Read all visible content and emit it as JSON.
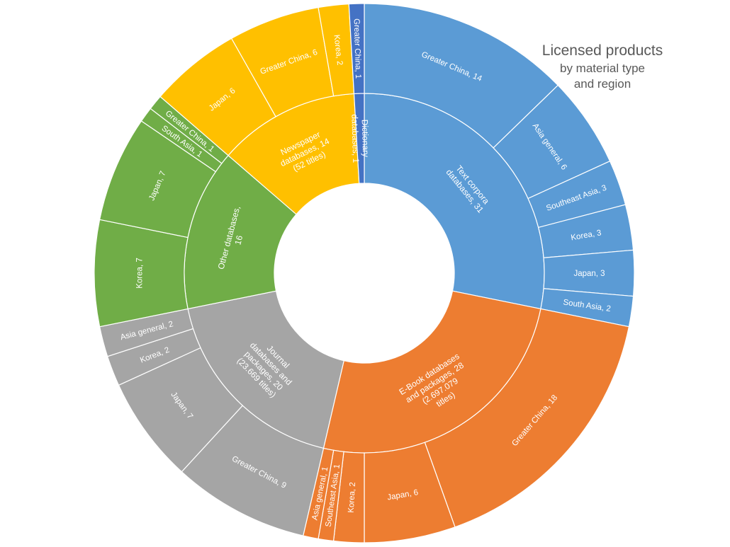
{
  "chart_data": {
    "type": "sunburst",
    "title": "Licensed products",
    "subtitle_lines": [
      "by material type",
      "and region"
    ],
    "categories": [
      {
        "name": "Text corpora databases",
        "label": "Text corpora databases, 31",
        "value": 31,
        "color": "#5b9bd5",
        "children": [
          {
            "name": "Greater China",
            "label": "Greater China, 14",
            "value": 14
          },
          {
            "name": "Asia general",
            "label": "Asia general, 6",
            "value": 6
          },
          {
            "name": "Southeast Asia",
            "label": "Southeast Asia, 3",
            "value": 3
          },
          {
            "name": "Korea",
            "label": "Korea, 3",
            "value": 3
          },
          {
            "name": "Japan",
            "label": "Japan, 3",
            "value": 3
          },
          {
            "name": "South Asia",
            "label": "South Asia, 2",
            "value": 2
          }
        ]
      },
      {
        "name": "E-Book databases and packages",
        "label": "E-Book databases and packages, 28 (2.697.079 titles)",
        "value": 28,
        "color": "#ed7d31",
        "children": [
          {
            "name": "Greater China",
            "label": "Greater China, 18",
            "value": 18
          },
          {
            "name": "Japan",
            "label": "Japan, 6",
            "value": 6
          },
          {
            "name": "Korea",
            "label": "Korea, 2",
            "value": 2
          },
          {
            "name": "Southeast Asia",
            "label": "Southeast Asia, 1",
            "value": 1
          },
          {
            "name": "Asia general",
            "label": "Asia general, 1",
            "value": 1
          }
        ]
      },
      {
        "name": "Journal databases and packages",
        "label": "Journal databases and packages, 20 (23.669 titles)",
        "value": 20,
        "color": "#a5a5a5",
        "children": [
          {
            "name": "Greater China",
            "label": "Greater China, 9",
            "value": 9
          },
          {
            "name": "Japan",
            "label": "Japan, 7",
            "value": 7
          },
          {
            "name": "Korea",
            "label": "Korea, 2",
            "value": 2
          },
          {
            "name": "Asia general",
            "label": "Asia general, 2",
            "value": 2
          }
        ]
      },
      {
        "name": "Other databases",
        "label": "Other databases, 16",
        "value": 16,
        "color": "#70ad47",
        "children": [
          {
            "name": "Korea",
            "label": "Korea, 7",
            "value": 7
          },
          {
            "name": "Japan",
            "label": "Japan, 7",
            "value": 7
          },
          {
            "name": "South Asia",
            "label": "South Asia, 1",
            "value": 1
          },
          {
            "name": "Greater China",
            "label": "Greater China, 1",
            "value": 1
          }
        ]
      },
      {
        "name": "Newspaper databases",
        "label": "Newspaper databases, 14 (52 titles)",
        "value": 14,
        "color": "#ffc000",
        "children": [
          {
            "name": "Japan",
            "label": "Japan, 6",
            "value": 6
          },
          {
            "name": "Greater China",
            "label": "Greater China, 6",
            "value": 6
          },
          {
            "name": "Korea",
            "label": "Korea, 2",
            "value": 2
          }
        ]
      },
      {
        "name": "Dictionary databases",
        "label": "Dictionary databases, 1",
        "value": 1,
        "color": "#4472c4",
        "children": [
          {
            "name": "Greater China",
            "label": "Greater China, 1",
            "value": 1
          }
        ]
      }
    ]
  }
}
